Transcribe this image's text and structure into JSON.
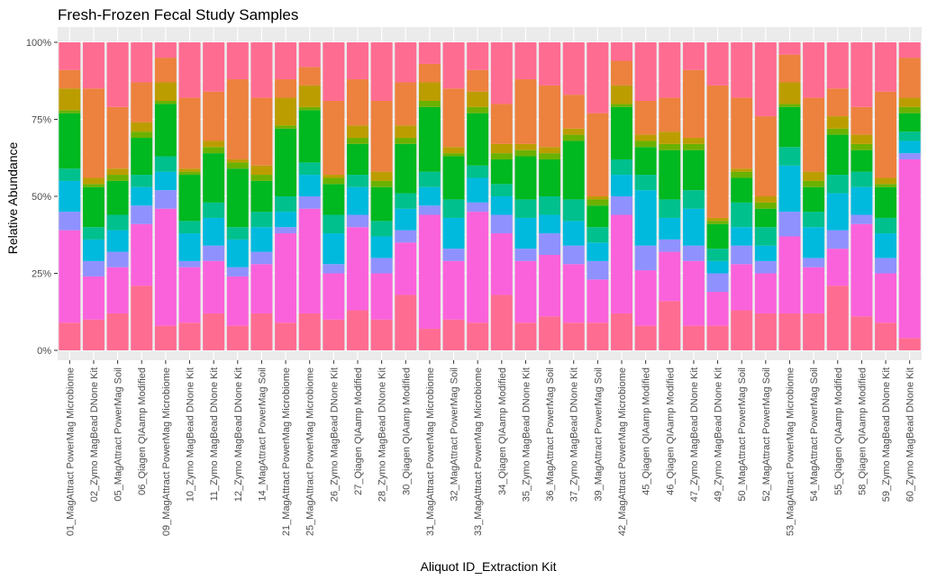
{
  "chart_data": {
    "type": "bar",
    "stacked": true,
    "title": "Fresh-Frozen Fecal Study Samples",
    "xlabel": "Aliquot ID_Extraction Kit",
    "ylabel": "Relative Abundance",
    "ylim": [
      0,
      1
    ],
    "y_ticks": [
      0,
      0.25,
      0.5,
      0.75,
      1
    ],
    "y_tick_labels": [
      "0%",
      "25%",
      "50%",
      "75%",
      "100%"
    ],
    "grid": true,
    "legend": "none",
    "panel_background": "#EBEBEB",
    "gridline_color": "#FFFFFF",
    "categories": [
      "01_MagAttract PowerMag Microbiome",
      "02_Zymo MagBead DNone Kit",
      "05_MagAttract PowerMag Soil",
      "06_Qiagen QIAamp  Modified",
      "09_MagAttract PowerMag Microbiome",
      "10_Zymo MagBead DNone Kit",
      "11_Zymo MagBead DNone Kit",
      "12_Zymo MagBead DNone Kit",
      "14_MagAttract PowerMag Soil",
      "21_MagAttract PowerMag Microbiome",
      "25_MagAttract PowerMag Microbiome",
      "26_Zymo MagBead DNone Kit",
      "27_Qiagen QIAamp  Modified",
      "28_Zymo MagBead DNone Kit",
      "30_Qiagen QIAamp  Modified",
      "31_MagAttract PowerMag Microbiome",
      "32_MagAttract PowerMag Soil",
      "33_MagAttract PowerMag Microbiome",
      "34_Qiagen QIAamp  Modified",
      "35_Zymo MagBead DNone Kit",
      "36_MagAttract PowerMag Soil",
      "37_Zymo MagBead DNone Kit",
      "39_MagAttract PowerMag Soil",
      "42_MagAttract PowerMag Microbiome",
      "45_Qiagen QIAamp  Modified",
      "46_Qiagen QIAamp  Modified",
      "47_Zymo MagBead DNone Kit",
      "49_Zymo MagBead DNone Kit",
      "50_MagAttract PowerMag Soil",
      "52_MagAttract PowerMag Soil",
      "53_MagAttract PowerMag Microbiome",
      "54_MagAttract PowerMag Soil",
      "55_Qiagen QIAamp  Modified",
      "58_Qiagen QIAamp  Modified",
      "59_Zymo MagBead DNone Kit",
      "60_Zymo MagBead DNone Kit"
    ],
    "series_colors": [
      "#FF6C91",
      "#FA62DB",
      "#8F91FF",
      "#00BADE",
      "#00C08D",
      "#00B81F",
      "#6BB100",
      "#BC9D00",
      "#ED813E"
    ],
    "boundaries": [
      [
        0.09,
        0.39,
        0.45,
        0.55,
        0.59,
        0.77,
        0.78,
        0.85,
        0.91
      ],
      [
        0.1,
        0.24,
        0.29,
        0.36,
        0.4,
        0.53,
        0.54,
        0.56,
        0.85
      ],
      [
        0.12,
        0.27,
        0.32,
        0.39,
        0.44,
        0.55,
        0.57,
        0.59,
        0.79
      ],
      [
        0.21,
        0.41,
        0.47,
        0.53,
        0.57,
        0.69,
        0.71,
        0.74,
        0.87
      ],
      [
        0.08,
        0.46,
        0.52,
        0.58,
        0.63,
        0.8,
        0.81,
        0.87,
        0.95
      ],
      [
        0.09,
        0.27,
        0.29,
        0.38,
        0.42,
        0.57,
        0.58,
        0.59,
        0.82
      ],
      [
        0.12,
        0.29,
        0.34,
        0.43,
        0.48,
        0.64,
        0.66,
        0.68,
        0.84
      ],
      [
        0.08,
        0.24,
        0.27,
        0.36,
        0.4,
        0.59,
        0.61,
        0.62,
        0.88
      ],
      [
        0.12,
        0.28,
        0.32,
        0.4,
        0.45,
        0.55,
        0.57,
        0.6,
        0.82
      ],
      [
        0.09,
        0.38,
        0.4,
        0.45,
        0.5,
        0.72,
        0.73,
        0.82,
        0.88
      ],
      [
        0.12,
        0.46,
        0.5,
        0.57,
        0.61,
        0.78,
        0.79,
        0.86,
        0.92
      ],
      [
        0.1,
        0.25,
        0.28,
        0.38,
        0.44,
        0.54,
        0.56,
        0.57,
        0.81
      ],
      [
        0.13,
        0.4,
        0.44,
        0.53,
        0.57,
        0.67,
        0.69,
        0.73,
        0.88
      ],
      [
        0.1,
        0.25,
        0.3,
        0.37,
        0.42,
        0.53,
        0.55,
        0.58,
        0.81
      ],
      [
        0.18,
        0.35,
        0.39,
        0.46,
        0.51,
        0.67,
        0.69,
        0.73,
        0.87
      ],
      [
        0.07,
        0.44,
        0.47,
        0.53,
        0.58,
        0.79,
        0.81,
        0.87,
        0.93
      ],
      [
        0.1,
        0.29,
        0.33,
        0.43,
        0.49,
        0.63,
        0.64,
        0.66,
        0.85
      ],
      [
        0.09,
        0.45,
        0.48,
        0.56,
        0.6,
        0.77,
        0.79,
        0.84,
        0.91
      ],
      [
        0.18,
        0.38,
        0.44,
        0.5,
        0.54,
        0.62,
        0.64,
        0.67,
        0.8
      ],
      [
        0.09,
        0.29,
        0.33,
        0.43,
        0.49,
        0.63,
        0.65,
        0.67,
        0.88
      ],
      [
        0.11,
        0.31,
        0.38,
        0.44,
        0.5,
        0.62,
        0.64,
        0.66,
        0.86
      ],
      [
        0.09,
        0.28,
        0.34,
        0.42,
        0.49,
        0.68,
        0.7,
        0.72,
        0.83
      ],
      [
        0.09,
        0.23,
        0.29,
        0.35,
        0.4,
        0.47,
        0.49,
        0.5,
        0.77
      ],
      [
        0.12,
        0.44,
        0.5,
        0.57,
        0.62,
        0.79,
        0.8,
        0.86,
        0.94
      ],
      [
        0.08,
        0.26,
        0.34,
        0.52,
        0.57,
        0.66,
        0.68,
        0.7,
        0.81
      ],
      [
        0.16,
        0.32,
        0.36,
        0.43,
        0.49,
        0.65,
        0.67,
        0.71,
        0.82
      ],
      [
        0.08,
        0.29,
        0.34,
        0.46,
        0.52,
        0.65,
        0.67,
        0.69,
        0.91
      ],
      [
        0.08,
        0.19,
        0.25,
        0.29,
        0.33,
        0.41,
        0.42,
        0.43,
        0.86
      ],
      [
        0.13,
        0.28,
        0.34,
        0.4,
        0.48,
        0.56,
        0.58,
        0.59,
        0.82
      ],
      [
        0.12,
        0.25,
        0.29,
        0.34,
        0.4,
        0.46,
        0.48,
        0.5,
        0.76
      ],
      [
        0.12,
        0.37,
        0.45,
        0.6,
        0.66,
        0.79,
        0.8,
        0.87,
        0.96
      ],
      [
        0.12,
        0.27,
        0.3,
        0.4,
        0.45,
        0.53,
        0.55,
        0.58,
        0.82
      ],
      [
        0.21,
        0.33,
        0.39,
        0.51,
        0.57,
        0.7,
        0.72,
        0.76,
        0.85
      ],
      [
        0.11,
        0.41,
        0.44,
        0.53,
        0.58,
        0.65,
        0.67,
        0.7,
        0.79
      ],
      [
        0.09,
        0.25,
        0.3,
        0.38,
        0.43,
        0.53,
        0.54,
        0.56,
        0.84
      ],
      [
        0.04,
        0.62,
        0.64,
        0.68,
        0.71,
        0.77,
        0.79,
        0.82,
        0.95
      ]
    ]
  }
}
